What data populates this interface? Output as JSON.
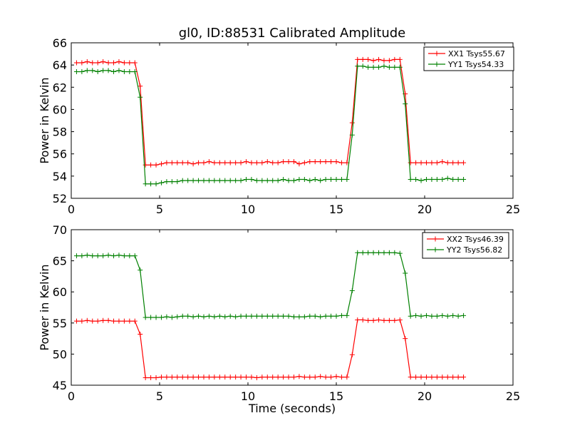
{
  "figure": {
    "title": "gl0, ID:88531 Calibrated Amplitude",
    "xlabel": "Time (seconds)"
  },
  "chart_data": [
    {
      "type": "line",
      "title": "gl0, ID:88531 Calibrated Amplitude",
      "xlabel": "",
      "ylabel": "Power in Kelvin",
      "xlim": [
        0,
        25
      ],
      "ylim": [
        52,
        66
      ],
      "xticks": [
        0,
        5,
        10,
        15,
        20,
        25
      ],
      "yticks": [
        52,
        54,
        56,
        58,
        60,
        62,
        64,
        66
      ],
      "legend_position": "top-right",
      "grid": false,
      "series": [
        {
          "name": "XX1 Tsys55.67",
          "color": "#ff0000",
          "x": [
            0.3,
            0.6,
            0.9,
            1.2,
            1.5,
            1.8,
            2.1,
            2.4,
            2.7,
            3.0,
            3.3,
            3.6,
            3.9,
            4.2,
            4.5,
            4.8,
            5.1,
            5.4,
            5.7,
            6.0,
            6.3,
            6.6,
            6.9,
            7.2,
            7.5,
            7.8,
            8.1,
            8.4,
            8.7,
            9.0,
            9.3,
            9.6,
            9.9,
            10.2,
            10.5,
            10.8,
            11.1,
            11.4,
            11.7,
            12.0,
            12.3,
            12.6,
            12.9,
            13.2,
            13.5,
            13.8,
            14.1,
            14.4,
            14.7,
            15.0,
            15.3,
            15.6,
            15.9,
            16.2,
            16.5,
            16.8,
            17.1,
            17.4,
            17.7,
            18.0,
            18.3,
            18.6,
            18.9,
            19.2,
            19.5,
            19.8,
            20.1,
            20.4,
            20.7,
            21.0,
            21.3,
            21.6,
            21.9,
            22.2
          ],
          "values": [
            64.2,
            64.2,
            64.3,
            64.2,
            64.2,
            64.3,
            64.2,
            64.2,
            64.3,
            64.2,
            64.2,
            64.2,
            62.1,
            55.0,
            55.0,
            55.0,
            55.1,
            55.2,
            55.2,
            55.2,
            55.2,
            55.2,
            55.1,
            55.2,
            55.2,
            55.3,
            55.2,
            55.2,
            55.2,
            55.2,
            55.2,
            55.2,
            55.3,
            55.2,
            55.2,
            55.2,
            55.3,
            55.2,
            55.2,
            55.3,
            55.3,
            55.3,
            55.1,
            55.2,
            55.3,
            55.3,
            55.3,
            55.3,
            55.3,
            55.3,
            55.2,
            55.2,
            58.8,
            64.5,
            64.5,
            64.5,
            64.4,
            64.5,
            64.4,
            64.4,
            64.5,
            64.5,
            61.4,
            55.2,
            55.2,
            55.2,
            55.2,
            55.2,
            55.2,
            55.3,
            55.2,
            55.2,
            55.2,
            55.2
          ]
        },
        {
          "name": "YY1 Tsys54.33",
          "color": "#008000",
          "x": [
            0.3,
            0.6,
            0.9,
            1.2,
            1.5,
            1.8,
            2.1,
            2.4,
            2.7,
            3.0,
            3.3,
            3.6,
            3.9,
            4.2,
            4.5,
            4.8,
            5.1,
            5.4,
            5.7,
            6.0,
            6.3,
            6.6,
            6.9,
            7.2,
            7.5,
            7.8,
            8.1,
            8.4,
            8.7,
            9.0,
            9.3,
            9.6,
            9.9,
            10.2,
            10.5,
            10.8,
            11.1,
            11.4,
            11.7,
            12.0,
            12.3,
            12.6,
            12.9,
            13.2,
            13.5,
            13.8,
            14.1,
            14.4,
            14.7,
            15.0,
            15.3,
            15.6,
            15.9,
            16.2,
            16.5,
            16.8,
            17.1,
            17.4,
            17.7,
            18.0,
            18.3,
            18.6,
            18.9,
            19.2,
            19.5,
            19.8,
            20.1,
            20.4,
            20.7,
            21.0,
            21.3,
            21.6,
            21.9,
            22.2
          ],
          "values": [
            63.4,
            63.4,
            63.5,
            63.5,
            63.4,
            63.5,
            63.5,
            63.4,
            63.5,
            63.4,
            63.4,
            63.4,
            61.1,
            53.3,
            53.3,
            53.3,
            53.4,
            53.5,
            53.5,
            53.5,
            53.6,
            53.6,
            53.6,
            53.6,
            53.6,
            53.6,
            53.6,
            53.6,
            53.6,
            53.6,
            53.6,
            53.6,
            53.7,
            53.7,
            53.6,
            53.6,
            53.6,
            53.6,
            53.6,
            53.7,
            53.6,
            53.6,
            53.7,
            53.7,
            53.6,
            53.7,
            53.6,
            53.7,
            53.7,
            53.7,
            53.7,
            53.7,
            57.7,
            63.9,
            63.9,
            63.8,
            63.8,
            63.8,
            63.9,
            63.8,
            63.8,
            63.8,
            60.5,
            53.7,
            53.7,
            53.6,
            53.7,
            53.7,
            53.7,
            53.7,
            53.8,
            53.7,
            53.7,
            53.7
          ]
        }
      ]
    },
    {
      "type": "line",
      "title": "",
      "xlabel": "Time (seconds)",
      "ylabel": "Power in Kelvin",
      "xlim": [
        0,
        25
      ],
      "ylim": [
        45,
        70
      ],
      "xticks": [
        0,
        5,
        10,
        15,
        20,
        25
      ],
      "yticks": [
        45,
        50,
        55,
        60,
        65,
        70
      ],
      "legend_position": "top-right",
      "grid": false,
      "series": [
        {
          "name": "XX2 Tsys46.39",
          "color": "#ff0000",
          "x": [
            0.3,
            0.6,
            0.9,
            1.2,
            1.5,
            1.8,
            2.1,
            2.4,
            2.7,
            3.0,
            3.3,
            3.6,
            3.9,
            4.2,
            4.5,
            4.8,
            5.1,
            5.4,
            5.7,
            6.0,
            6.3,
            6.6,
            6.9,
            7.2,
            7.5,
            7.8,
            8.1,
            8.4,
            8.7,
            9.0,
            9.3,
            9.6,
            9.9,
            10.2,
            10.5,
            10.8,
            11.1,
            11.4,
            11.7,
            12.0,
            12.3,
            12.6,
            12.9,
            13.2,
            13.5,
            13.8,
            14.1,
            14.4,
            14.7,
            15.0,
            15.3,
            15.6,
            15.9,
            16.2,
            16.5,
            16.8,
            17.1,
            17.4,
            17.7,
            18.0,
            18.3,
            18.6,
            18.9,
            19.2,
            19.5,
            19.8,
            20.1,
            20.4,
            20.7,
            21.0,
            21.3,
            21.6,
            21.9,
            22.2
          ],
          "values": [
            55.3,
            55.3,
            55.4,
            55.3,
            55.3,
            55.4,
            55.4,
            55.3,
            55.3,
            55.3,
            55.3,
            55.3,
            53.2,
            46.2,
            46.2,
            46.2,
            46.3,
            46.3,
            46.3,
            46.3,
            46.3,
            46.3,
            46.3,
            46.3,
            46.3,
            46.3,
            46.3,
            46.3,
            46.3,
            46.3,
            46.3,
            46.3,
            46.3,
            46.3,
            46.2,
            46.3,
            46.3,
            46.3,
            46.3,
            46.3,
            46.3,
            46.3,
            46.4,
            46.3,
            46.3,
            46.3,
            46.4,
            46.3,
            46.3,
            46.4,
            46.3,
            46.3,
            49.9,
            55.5,
            55.5,
            55.4,
            55.4,
            55.5,
            55.4,
            55.4,
            55.4,
            55.5,
            52.5,
            46.3,
            46.3,
            46.3,
            46.3,
            46.3,
            46.3,
            46.3,
            46.3,
            46.3,
            46.3,
            46.3
          ]
        },
        {
          "name": "YY2 Tsys56.82",
          "color": "#008000",
          "x": [
            0.3,
            0.6,
            0.9,
            1.2,
            1.5,
            1.8,
            2.1,
            2.4,
            2.7,
            3.0,
            3.3,
            3.6,
            3.9,
            4.2,
            4.5,
            4.8,
            5.1,
            5.4,
            5.7,
            6.0,
            6.3,
            6.6,
            6.9,
            7.2,
            7.5,
            7.8,
            8.1,
            8.4,
            8.7,
            9.0,
            9.3,
            9.6,
            9.9,
            10.2,
            10.5,
            10.8,
            11.1,
            11.4,
            11.7,
            12.0,
            12.3,
            12.6,
            12.9,
            13.2,
            13.5,
            13.8,
            14.1,
            14.4,
            14.7,
            15.0,
            15.3,
            15.6,
            15.9,
            16.2,
            16.5,
            16.8,
            17.1,
            17.4,
            17.7,
            18.0,
            18.3,
            18.6,
            18.9,
            19.2,
            19.5,
            19.8,
            20.1,
            20.4,
            20.7,
            21.0,
            21.3,
            21.6,
            21.9,
            22.2
          ],
          "values": [
            65.8,
            65.8,
            65.9,
            65.8,
            65.8,
            65.8,
            65.9,
            65.8,
            65.9,
            65.8,
            65.8,
            65.8,
            63.5,
            55.9,
            55.9,
            55.9,
            55.9,
            56.0,
            55.9,
            56.0,
            56.1,
            56.1,
            56.0,
            56.1,
            56.0,
            56.1,
            56.0,
            56.1,
            56.0,
            56.1,
            56.0,
            56.1,
            56.1,
            56.1,
            56.1,
            56.1,
            56.1,
            56.1,
            56.1,
            56.1,
            56.1,
            56.0,
            56.0,
            56.0,
            56.1,
            56.1,
            56.0,
            56.1,
            56.1,
            56.1,
            56.2,
            56.2,
            60.2,
            66.3,
            66.3,
            66.3,
            66.3,
            66.3,
            66.3,
            66.3,
            66.3,
            66.2,
            63.0,
            56.1,
            56.2,
            56.1,
            56.2,
            56.1,
            56.1,
            56.2,
            56.1,
            56.2,
            56.1,
            56.2
          ]
        }
      ]
    }
  ]
}
